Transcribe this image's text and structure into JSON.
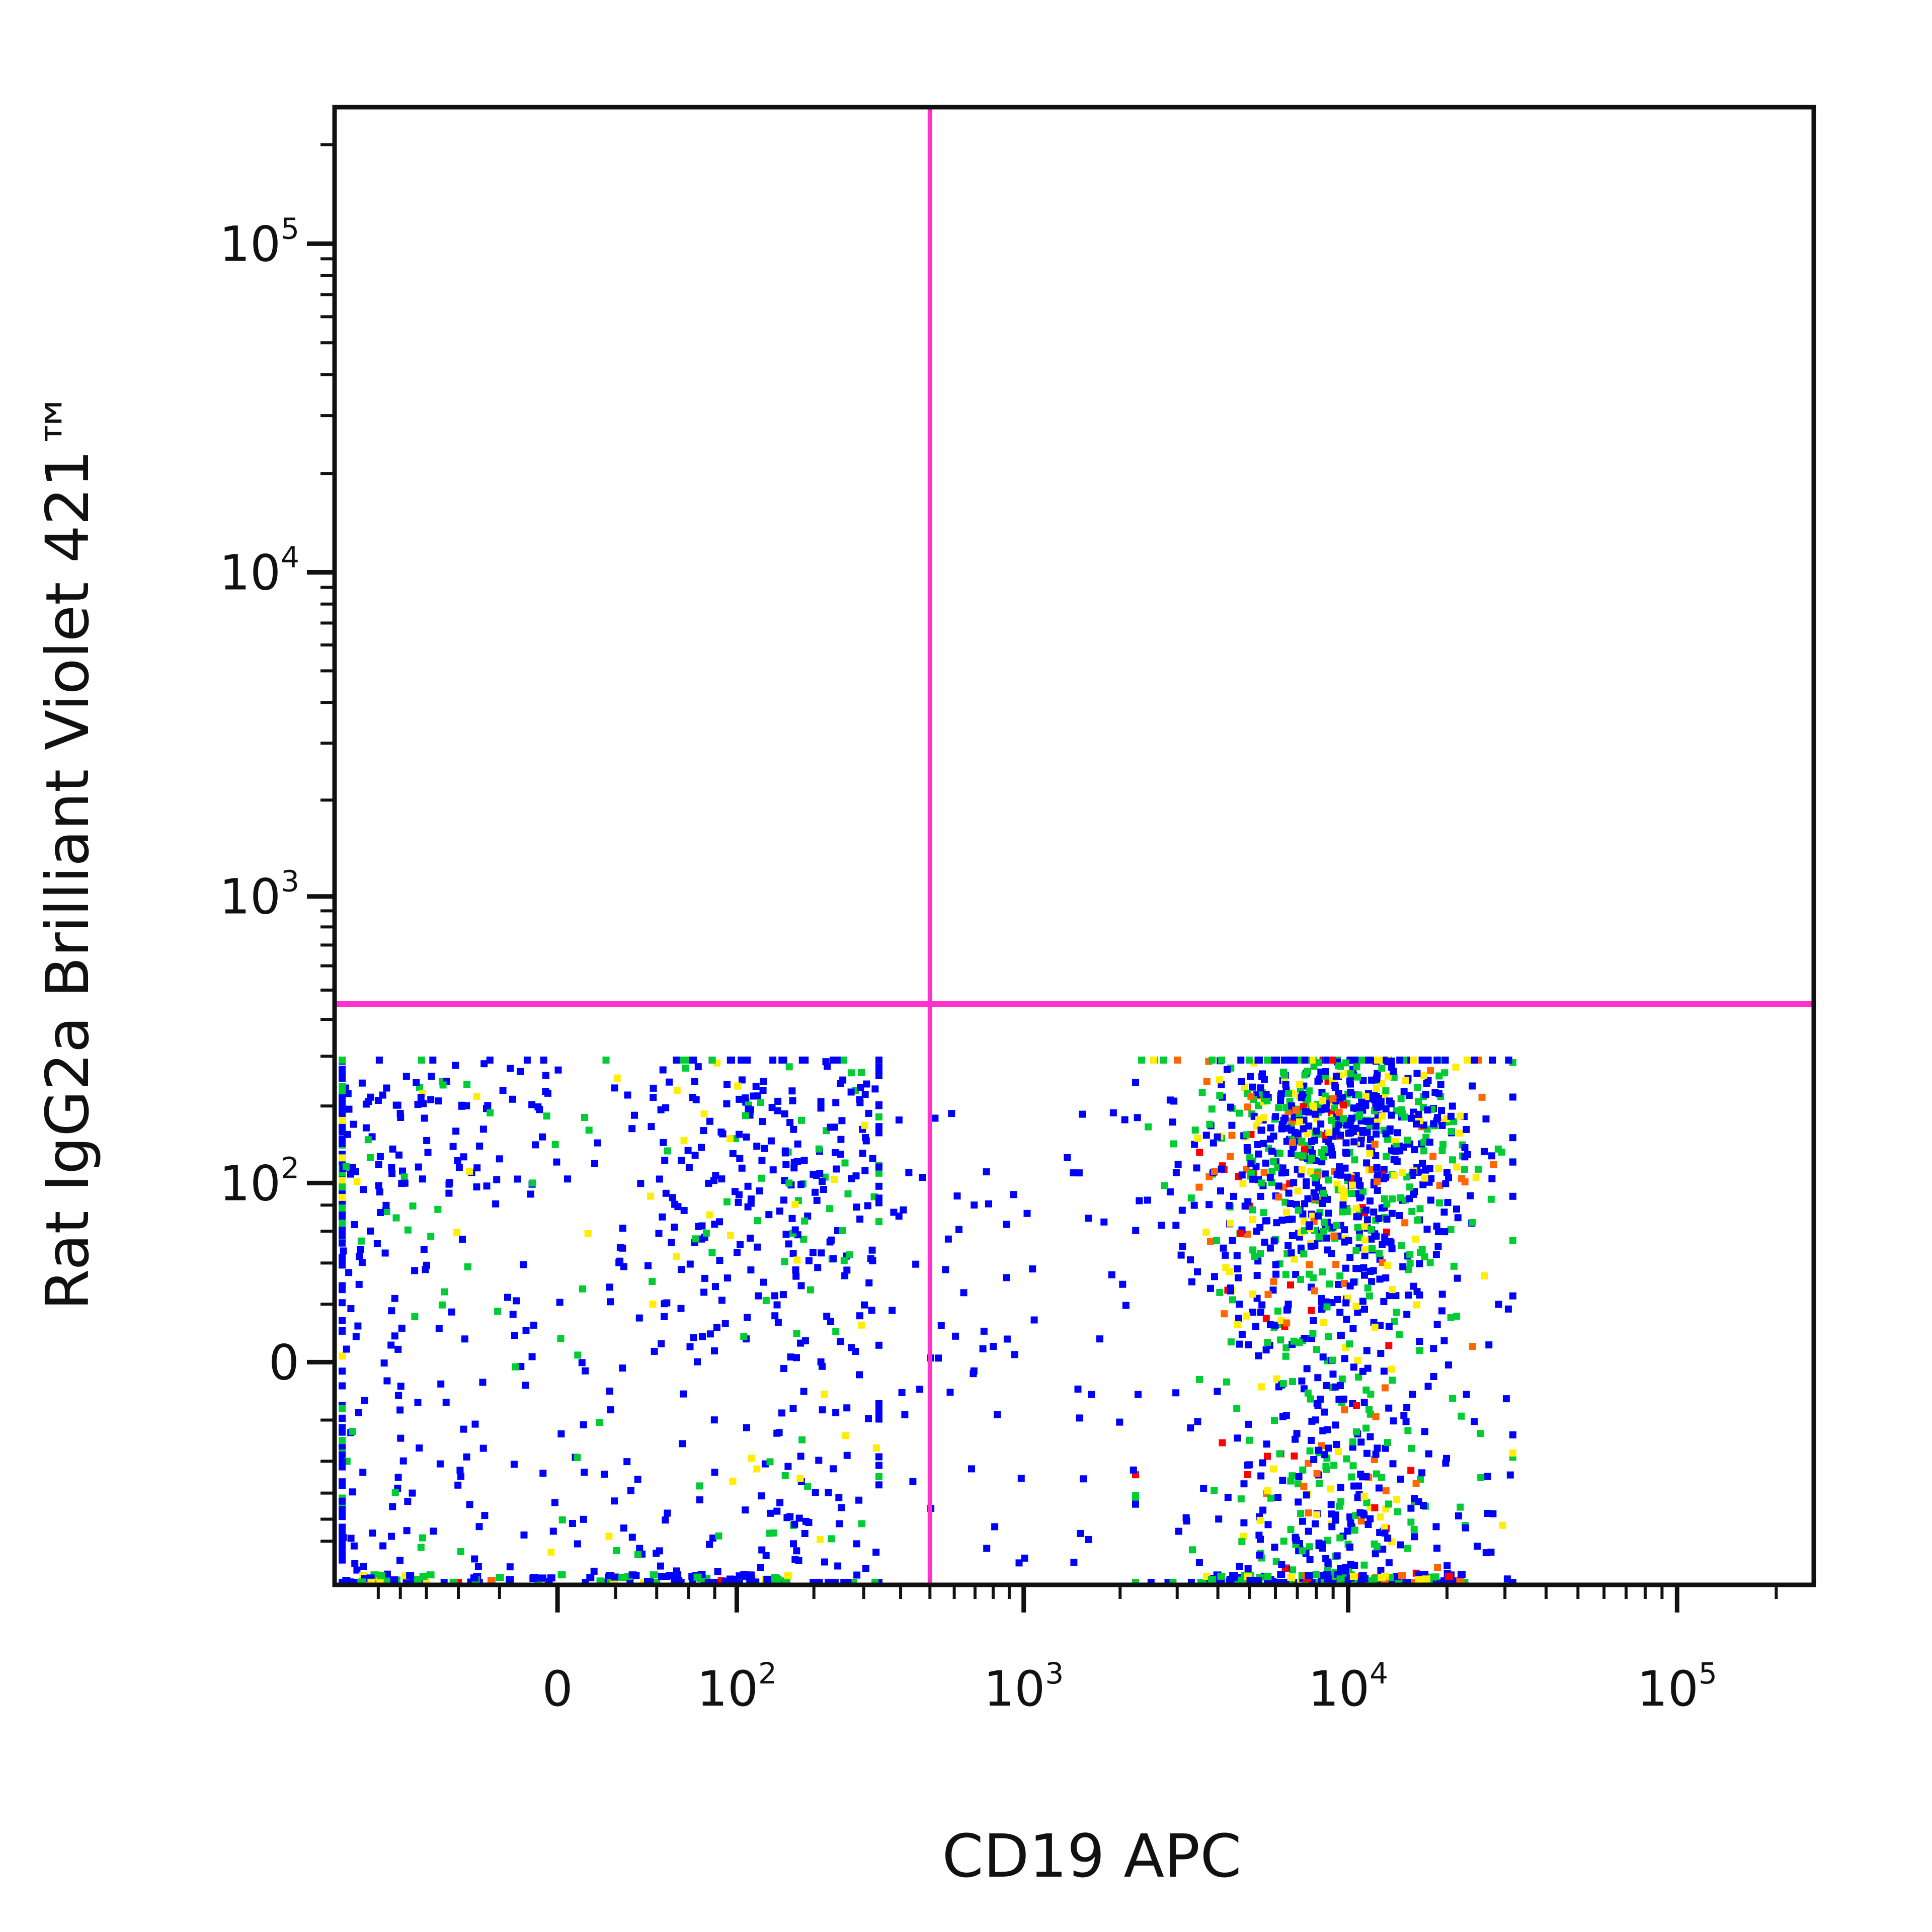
{
  "chart_data": {
    "type": "scatter",
    "title": "",
    "xlabel": "CD19 APC",
    "ylabel": "Rat IgG2a Brilliant Violet 421™",
    "x_scale": "biexponential",
    "y_scale": "biexponential",
    "x_ticks": [
      {
        "value": 0,
        "base": "0",
        "exp": ""
      },
      {
        "value": 100,
        "base": "10",
        "exp": "2"
      },
      {
        "value": 1000,
        "base": "10",
        "exp": "3"
      },
      {
        "value": 10000,
        "base": "10",
        "exp": "4"
      },
      {
        "value": 100000,
        "base": "10",
        "exp": "5"
      }
    ],
    "y_ticks": [
      {
        "value": 0,
        "base": "0",
        "exp": ""
      },
      {
        "value": 100,
        "base": "10",
        "exp": "2"
      },
      {
        "value": 1000,
        "base": "10",
        "exp": "3"
      },
      {
        "value": 10000,
        "base": "10",
        "exp": "4"
      },
      {
        "value": 100000,
        "base": "10",
        "exp": "5"
      }
    ],
    "xlim": [
      -150,
      260000
    ],
    "ylim": [
      -150,
      260000
    ],
    "gates": {
      "x_threshold": 500,
      "y_threshold": 450,
      "color": "#ff33cc"
    },
    "density_colors": [
      "#0000ff",
      "#00cc33",
      "#ffee00",
      "#ff6600",
      "#ff0000"
    ],
    "populations": [
      {
        "x_center": 30,
        "x_spread": 120,
        "y_center": 60,
        "y_spread": 110,
        "density": "low"
      },
      {
        "x_center": 9000,
        "x_spread": 0.22,
        "y_center": 80,
        "y_spread": 110,
        "density": "high"
      }
    ],
    "grid": false,
    "legend": "none"
  }
}
